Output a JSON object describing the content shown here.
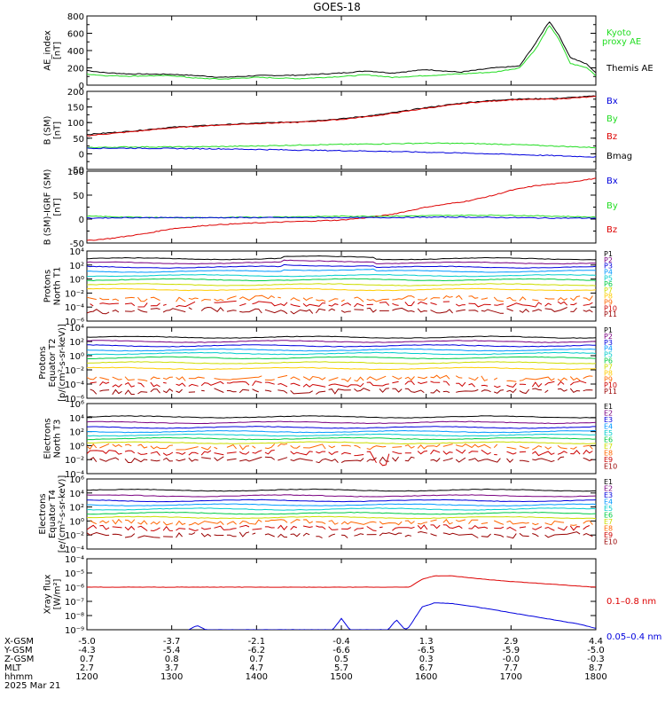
{
  "title": "GOES-18",
  "colors": {
    "black": "#000000",
    "red": "#dd0000",
    "green": "#22dd22",
    "blue": "#0000dd",
    "ae_kyoto": "#22dd22",
    "xray_long": "#dd0000",
    "xray_short": "#0000dd"
  },
  "chart_data": [
    {
      "id": "ae",
      "type": "line",
      "ylabel": [
        "AE_index",
        "[nT]"
      ],
      "ylim": [
        0,
        800
      ],
      "yticks": [
        "0",
        "200",
        "400",
        "600",
        "800"
      ],
      "log": false,
      "legend": [
        {
          "text": "Kyoto",
          "color": "green"
        },
        {
          "text": "proxy AE",
          "color": "green"
        },
        {
          "text": "Themis AE",
          "color": "black"
        }
      ],
      "series": [
        {
          "name": "Themis AE",
          "color": "black",
          "x": [
            12.0,
            12.2,
            12.5,
            13.0,
            13.3,
            13.6,
            14.0,
            14.5,
            15.0,
            15.3,
            15.6,
            16.0,
            16.4,
            16.8,
            17.1,
            17.3,
            17.45,
            17.55,
            17.7,
            17.9,
            18.0
          ],
          "y": [
            170,
            145,
            130,
            125,
            110,
            90,
            110,
            115,
            140,
            165,
            140,
            180,
            150,
            200,
            220,
            500,
            740,
            600,
            320,
            240,
            140
          ]
        },
        {
          "name": "Kyoto proxy AE",
          "color": "green",
          "x": [
            12.0,
            12.2,
            12.5,
            13.0,
            13.3,
            13.6,
            14.0,
            14.5,
            15.0,
            15.3,
            15.6,
            16.0,
            16.4,
            16.8,
            17.1,
            17.3,
            17.45,
            17.55,
            17.7,
            17.9,
            18.0
          ],
          "y": [
            130,
            110,
            105,
            110,
            80,
            70,
            90,
            75,
            100,
            120,
            90,
            110,
            130,
            150,
            200,
            430,
            690,
            560,
            250,
            200,
            110
          ]
        }
      ]
    },
    {
      "id": "bsm",
      "type": "line",
      "ylabel": [
        "B (SM)",
        "[nT]"
      ],
      "ylim": [
        -50,
        200
      ],
      "yticks": [
        "-50",
        "0",
        "50",
        "100",
        "150",
        "200"
      ],
      "log": false,
      "legend": [
        {
          "text": "Bx",
          "color": "blue"
        },
        {
          "text": "By",
          "color": "green"
        },
        {
          "text": "Bz",
          "color": "red"
        },
        {
          "text": "Bmag",
          "color": "black"
        }
      ],
      "series": [
        {
          "name": "Bmag",
          "color": "black",
          "x": [
            12.0,
            12.5,
            13.0,
            13.5,
            14.0,
            14.5,
            15.0,
            15.5,
            16.0,
            16.5,
            17.0,
            17.5,
            18.0
          ],
          "y": [
            62,
            72,
            85,
            92,
            98,
            103,
            112,
            127,
            148,
            165,
            175,
            177,
            185
          ]
        },
        {
          "name": "Bz",
          "color": "red",
          "x": [
            12.0,
            12.5,
            13.0,
            13.5,
            14.0,
            14.5,
            15.0,
            15.5,
            16.0,
            16.5,
            17.0,
            17.5,
            18.0
          ],
          "y": [
            58,
            70,
            83,
            91,
            97,
            101,
            110,
            125,
            146,
            163,
            173,
            175,
            183
          ]
        },
        {
          "name": "By",
          "color": "green",
          "x": [
            12.0,
            12.5,
            13.0,
            13.5,
            14.0,
            14.5,
            15.0,
            15.5,
            16.0,
            16.5,
            17.0,
            17.5,
            18.0
          ],
          "y": [
            20,
            22,
            22,
            23,
            25,
            28,
            30,
            32,
            34,
            33,
            30,
            25,
            20
          ]
        },
        {
          "name": "Bx",
          "color": "blue",
          "x": [
            12.0,
            12.5,
            13.0,
            13.5,
            14.0,
            14.5,
            15.0,
            15.5,
            16.0,
            16.5,
            17.0,
            17.5,
            18.0
          ],
          "y": [
            18,
            18,
            17,
            16,
            14,
            12,
            10,
            8,
            5,
            2,
            -2,
            -6,
            -10
          ]
        }
      ]
    },
    {
      "id": "bdiff",
      "type": "line",
      "ylabel": [
        "B (SM)-IGRF (SM)",
        "[nT]"
      ],
      "ylim": [
        -50,
        100
      ],
      "yticks": [
        "-50",
        "0",
        "50",
        "100"
      ],
      "log": false,
      "legend": [
        {
          "text": "Bx",
          "color": "blue"
        },
        {
          "text": "By",
          "color": "green"
        },
        {
          "text": "Bz",
          "color": "red"
        }
      ],
      "series": [
        {
          "name": "Bz",
          "color": "red",
          "x": [
            12.0,
            12.3,
            12.7,
            13.0,
            13.5,
            14.0,
            14.5,
            15.0,
            15.3,
            15.6,
            16.0,
            16.5,
            16.8,
            17.0,
            17.3,
            17.6,
            18.0
          ],
          "y": [
            -45,
            -40,
            -30,
            -20,
            -12,
            -8,
            -5,
            -2,
            3,
            10,
            25,
            38,
            50,
            60,
            70,
            75,
            85
          ]
        },
        {
          "name": "By",
          "color": "green",
          "x": [
            12.0,
            12.5,
            13.0,
            13.5,
            14.0,
            14.5,
            15.0,
            15.5,
            16.0,
            16.5,
            17.0,
            17.5,
            18.0
          ],
          "y": [
            6,
            4,
            3,
            3,
            4,
            5,
            6,
            6,
            7,
            8,
            8,
            6,
            4
          ]
        },
        {
          "name": "Bx",
          "color": "blue",
          "x": [
            12.0,
            12.5,
            13.0,
            13.5,
            14.0,
            14.5,
            15.0,
            15.5,
            16.0,
            16.5,
            17.0,
            17.5,
            18.0
          ],
          "y": [
            2,
            3,
            3,
            3,
            3,
            3,
            3,
            3,
            4,
            4,
            3,
            2,
            2
          ]
        }
      ]
    },
    {
      "id": "pn",
      "type": "line",
      "ylabel": [
        "Protons",
        "North T1"
      ],
      "log": true,
      "ylim": [
        -6,
        4
      ],
      "yticks": [
        "10⁻⁶",
        "10⁻⁴",
        "10⁻²",
        "10⁰",
        "10²",
        "10⁴"
      ],
      "yticks_at": [
        -6,
        -4,
        -2,
        0,
        2,
        4
      ],
      "legend": [
        {
          "text": "P1",
          "color": "#000000"
        },
        {
          "text": "P2",
          "color": "#7a0080"
        },
        {
          "text": "P3",
          "color": "#0000dd"
        },
        {
          "text": "P4",
          "color": "#0099ff"
        },
        {
          "text": "P5",
          "color": "#00cccc"
        },
        {
          "text": "P6",
          "color": "#00cc44"
        },
        {
          "text": "P7",
          "color": "#ccdd00"
        },
        {
          "text": "P8",
          "color": "#ffcc00"
        },
        {
          "text": "P9",
          "color": "#ff6600"
        },
        {
          "text": "P10",
          "color": "#cc0000"
        },
        {
          "text": "P11",
          "color": "#990000"
        }
      ],
      "levels": [
        2.9,
        2.3,
        1.7,
        1.1,
        0.5,
        -0.1,
        -0.8,
        -1.5,
        -2.8,
        -3.6,
        -4.5
      ]
    },
    {
      "id": "pe",
      "type": "line",
      "ylabel": [
        "Protons",
        "Equator T2",
        "[p/(cm²-s-sr-keV)]"
      ],
      "log": true,
      "ylim": [
        -6,
        4
      ],
      "yticks": [
        "10⁻⁶",
        "10⁻⁴",
        "10⁻²",
        "10⁰",
        "10²",
        "10⁴"
      ],
      "yticks_at": [
        -6,
        -4,
        -2,
        0,
        2,
        4
      ],
      "legend": [
        {
          "text": "P1",
          "color": "#000000"
        },
        {
          "text": "P2",
          "color": "#7a0080"
        },
        {
          "text": "P3",
          "color": "#0000dd"
        },
        {
          "text": "P4",
          "color": "#0099ff"
        },
        {
          "text": "P5",
          "color": "#00cccc"
        },
        {
          "text": "P6",
          "color": "#00cc44"
        },
        {
          "text": "P7",
          "color": "#ccdd00"
        },
        {
          "text": "P8",
          "color": "#ffcc00"
        },
        {
          "text": "P9",
          "color": "#ff6600"
        },
        {
          "text": "P10",
          "color": "#cc0000"
        },
        {
          "text": "P11",
          "color": "#990000"
        }
      ],
      "levels": [
        2.6,
        2.0,
        1.4,
        0.8,
        0.3,
        -0.3,
        -1.0,
        -1.8,
        -3.2,
        -4.0,
        -5.0
      ]
    },
    {
      "id": "en",
      "type": "line",
      "ylabel": [
        "Electrons",
        "North T3"
      ],
      "log": true,
      "ylim": [
        -4,
        6
      ],
      "yticks": [
        "10⁻⁴",
        "10⁻²",
        "10⁰",
        "10²",
        "10⁴",
        "10⁶"
      ],
      "yticks_at": [
        -4,
        -2,
        0,
        2,
        4,
        6
      ],
      "legend": [
        {
          "text": "E1",
          "color": "#000000"
        },
        {
          "text": "E2",
          "color": "#7a0080"
        },
        {
          "text": "E3",
          "color": "#0000dd"
        },
        {
          "text": "E4",
          "color": "#0099ff"
        },
        {
          "text": "E5",
          "color": "#00cccc"
        },
        {
          "text": "E6",
          "color": "#00cc44"
        },
        {
          "text": "E7",
          "color": "#ccdd00"
        },
        {
          "text": "E8",
          "color": "#ff6600"
        },
        {
          "text": "E9",
          "color": "#cc0000"
        },
        {
          "text": "E10",
          "color": "#990000"
        }
      ],
      "levels": [
        4.1,
        3.3,
        2.6,
        2.0,
        1.5,
        1.0,
        0.4,
        -0.2,
        -1.0,
        -2.0
      ]
    },
    {
      "id": "ee",
      "type": "line",
      "ylabel": [
        "Electrons",
        "Equator T4",
        "[e/(cm²-s-sr-keV)]"
      ],
      "log": true,
      "ylim": [
        -4,
        6
      ],
      "yticks": [
        "10⁻⁴",
        "10⁻²",
        "10⁰",
        "10²",
        "10⁴",
        "10⁶"
      ],
      "yticks_at": [
        -4,
        -2,
        0,
        2,
        4,
        6
      ],
      "legend": [
        {
          "text": "E1",
          "color": "#000000"
        },
        {
          "text": "E2",
          "color": "#7a0080"
        },
        {
          "text": "E3",
          "color": "#0000dd"
        },
        {
          "text": "E4",
          "color": "#0099ff"
        },
        {
          "text": "E5",
          "color": "#00cccc"
        },
        {
          "text": "E6",
          "color": "#00cc44"
        },
        {
          "text": "E7",
          "color": "#ccdd00"
        },
        {
          "text": "E8",
          "color": "#ff6600"
        },
        {
          "text": "E9",
          "color": "#cc0000"
        },
        {
          "text": "E10",
          "color": "#990000"
        }
      ],
      "levels": [
        4.4,
        3.6,
        2.9,
        2.3,
        1.7,
        1.1,
        0.5,
        -0.2,
        -1.0,
        -2.0
      ]
    },
    {
      "id": "xray",
      "type": "line",
      "ylabel": [
        "Xray flux",
        "[W/m²]"
      ],
      "log": true,
      "ylim": [
        -9,
        -4
      ],
      "yticks": [
        "10⁻⁹",
        "10⁻⁸",
        "10⁻⁷",
        "10⁻⁶",
        "10⁻⁵",
        "10⁻⁴"
      ],
      "yticks_at": [
        -9,
        -8,
        -7,
        -6,
        -5,
        -4
      ],
      "legend": [
        {
          "text": "0.1–0.8 nm",
          "color": "red"
        },
        {
          "text": "0.05–0.4 nm",
          "color": "blue"
        }
      ],
      "series": [
        {
          "name": "0.1–0.8 nm",
          "color": "red",
          "x": [
            12.0,
            13.0,
            14.0,
            15.0,
            15.5,
            15.8,
            15.95,
            16.1,
            16.3,
            16.6,
            17.0,
            17.5,
            18.0
          ],
          "y": [
            -6.0,
            -6.0,
            -6.0,
            -6.0,
            -6.0,
            -6.0,
            -5.45,
            -5.2,
            -5.2,
            -5.4,
            -5.6,
            -5.8,
            -6.0
          ]
        },
        {
          "name": "0.05–0.4 nm",
          "color": "blue",
          "x": [
            13.2,
            13.3,
            13.4,
            14.9,
            15.0,
            15.1,
            15.55,
            15.65,
            15.75,
            15.8,
            15.95,
            16.1,
            16.3,
            16.6,
            17.0,
            17.4,
            17.6,
            17.8,
            18.0
          ],
          "y": [
            -9.0,
            -8.7,
            -9.0,
            -9.0,
            -8.2,
            -9.0,
            -9.0,
            -8.3,
            -9.0,
            -8.8,
            -7.4,
            -7.1,
            -7.15,
            -7.4,
            -7.8,
            -8.2,
            -8.4,
            -8.6,
            -8.9
          ]
        }
      ]
    }
  ],
  "xaxis": {
    "xlim": [
      12.0,
      18.0
    ],
    "ticks_at": [
      12.0,
      13.0,
      14.0,
      15.0,
      16.0,
      17.0,
      18.0
    ],
    "row_labels": [
      "X-GSM",
      "Y-GSM",
      "Z-GSM",
      "MLT",
      "hhmm"
    ],
    "date": "2025 Mar 21",
    "rows": [
      [
        "-5.0",
        "-3.7",
        "-2.1",
        "-0.4",
        "1.3",
        "2.9",
        "4.4"
      ],
      [
        "-4.3",
        "-5.4",
        "-6.2",
        "-6.6",
        "-6.5",
        "-5.9",
        "-5.0"
      ],
      [
        "0.7",
        "0.8",
        "0.7",
        "0.5",
        "0.3",
        "-0.0",
        "-0.3"
      ],
      [
        "2.7",
        "3.7",
        "4.7",
        "5.7",
        "6.7",
        "7.7",
        "8.7"
      ],
      [
        "1200",
        "1300",
        "1400",
        "1500",
        "1600",
        "1700",
        "1800"
      ]
    ]
  }
}
